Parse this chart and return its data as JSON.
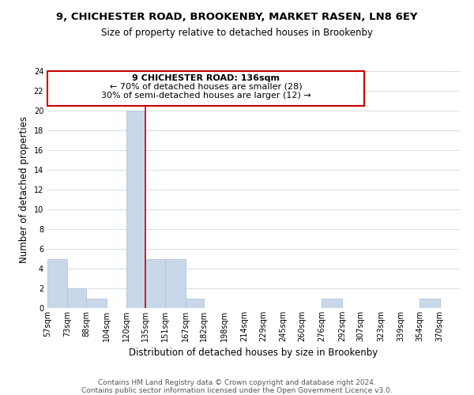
{
  "title_line1": "9, CHICHESTER ROAD, BROOKENBY, MARKET RASEN, LN8 6EY",
  "title_line2": "Size of property relative to detached houses in Brookenby",
  "xlabel": "Distribution of detached houses by size in Brookenby",
  "ylabel": "Number of detached properties",
  "bar_left_edges": [
    57,
    73,
    88,
    104,
    120,
    135,
    151,
    167,
    182,
    198,
    214,
    229,
    245,
    260,
    276,
    292,
    307,
    323,
    339,
    354
  ],
  "bar_widths": [
    16,
    15,
    16,
    16,
    15,
    16,
    16,
    15,
    16,
    16,
    15,
    16,
    15,
    16,
    16,
    15,
    15,
    16,
    15,
    16
  ],
  "bar_heights": [
    5,
    2,
    1,
    0,
    20,
    5,
    5,
    1,
    0,
    0,
    0,
    0,
    0,
    0,
    1,
    0,
    0,
    0,
    0,
    1
  ],
  "bar_color": "#c8d8e8",
  "bar_edgecolor": "#b0c4d8",
  "vline_x": 135,
  "vline_color": "#cc0000",
  "ylim": [
    0,
    24
  ],
  "yticks": [
    0,
    2,
    4,
    6,
    8,
    10,
    12,
    14,
    16,
    18,
    20,
    22,
    24
  ],
  "xtick_labels": [
    "57sqm",
    "73sqm",
    "88sqm",
    "104sqm",
    "120sqm",
    "135sqm",
    "151sqm",
    "167sqm",
    "182sqm",
    "198sqm",
    "214sqm",
    "229sqm",
    "245sqm",
    "260sqm",
    "276sqm",
    "292sqm",
    "307sqm",
    "323sqm",
    "339sqm",
    "354sqm",
    "370sqm"
  ],
  "xtick_positions": [
    57,
    73,
    88,
    104,
    120,
    135,
    151,
    167,
    182,
    198,
    214,
    229,
    245,
    260,
    276,
    292,
    307,
    323,
    339,
    354,
    370
  ],
  "annotation_title": "9 CHICHESTER ROAD: 136sqm",
  "annotation_line2": "← 70% of detached houses are smaller (28)",
  "annotation_line3": "30% of semi-detached houses are larger (12) →",
  "grid_color": "#d4dde8",
  "footer_line1": "Contains HM Land Registry data © Crown copyright and database right 2024.",
  "footer_line2": "Contains public sector information licensed under the Open Government Licence v3.0.",
  "bg_color": "#ffffff",
  "title_fontsize": 9.5,
  "subtitle_fontsize": 8.5,
  "axis_label_fontsize": 8.5,
  "tick_fontsize": 7,
  "annotation_fontsize": 8,
  "footer_fontsize": 6.5
}
